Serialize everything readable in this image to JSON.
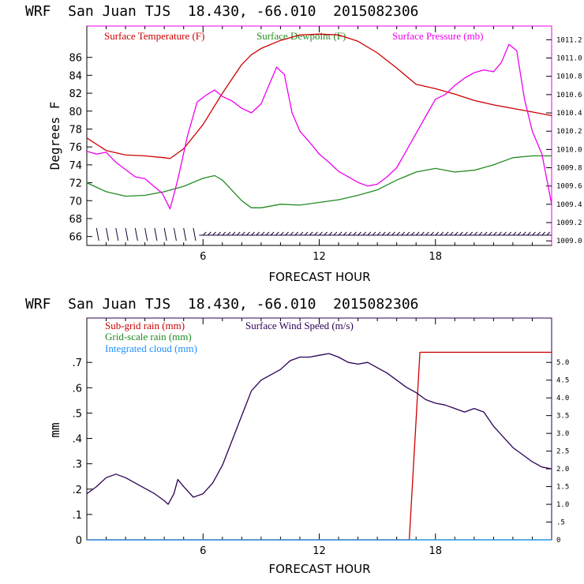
{
  "colors": {
    "temperature": "#cc0000",
    "dewpoint": "#228b22",
    "pressure": "#ee00ee",
    "wind_barb": "#1a0033",
    "subgrid_rain": "#cc0000",
    "gridscale_rain": "#228b22",
    "cloud": "#1e90ff",
    "wind_speed": "#2a0055",
    "axis": "#000000"
  },
  "chart_data": [
    {
      "type": "line",
      "title": "WRF  San Juan TJS  18.430, -66.010  2015082306",
      "xlabel": "FORECAST HOUR",
      "ylabel": "Degrees F",
      "y2label": "",
      "xlim": [
        0,
        24
      ],
      "ylim": [
        65,
        89.5
      ],
      "y2lim": [
        1008.95,
        1011.35
      ],
      "xticks": [
        6,
        12,
        18
      ],
      "yticks": [
        66,
        68,
        70,
        72,
        74,
        76,
        78,
        80,
        82,
        84,
        86
      ],
      "y2ticks": [
        "1009.0",
        "1009.2",
        "1009.4",
        "1009.6",
        "1009.8",
        "1010.0",
        "1010.2",
        "1010.4",
        "1010.6",
        "1010.8",
        "1011.0",
        "1011.2"
      ],
      "legend": [
        "Surface Temperature (F)",
        "Surface Dewpoint (F)",
        "Surface Pressure (mb)"
      ],
      "series": [
        {
          "name": "Surface Temperature (F)",
          "axis": "left",
          "x": [
            0,
            1,
            2,
            3,
            4,
            4.3,
            5,
            6,
            7,
            8,
            8.5,
            9,
            10,
            11,
            12,
            13,
            14,
            15,
            16,
            17,
            18,
            19,
            20,
            21,
            22,
            23,
            24
          ],
          "values": [
            77.0,
            75.6,
            75.1,
            75.0,
            74.8,
            74.7,
            75.8,
            78.5,
            82.0,
            85.2,
            86.3,
            87.0,
            87.9,
            88.5,
            88.6,
            88.5,
            87.8,
            86.5,
            84.8,
            83.0,
            82.5,
            81.9,
            81.2,
            80.7,
            80.3,
            79.9,
            79.5
          ]
        },
        {
          "name": "Surface Dewpoint (F)",
          "axis": "left",
          "x": [
            0,
            1,
            2,
            3,
            4,
            5,
            6,
            6.6,
            7,
            8,
            8.5,
            9,
            10,
            11,
            12,
            13,
            14,
            15,
            16,
            17,
            18,
            19,
            20,
            21,
            22,
            23,
            24
          ],
          "values": [
            72.0,
            71.0,
            70.5,
            70.6,
            71.0,
            71.6,
            72.5,
            72.8,
            72.3,
            70.0,
            69.2,
            69.2,
            69.6,
            69.5,
            69.8,
            70.1,
            70.6,
            71.2,
            72.3,
            73.2,
            73.6,
            73.2,
            73.4,
            74.0,
            74.8,
            75.0,
            75.0
          ]
        },
        {
          "name": "Surface Pressure (mb)",
          "axis": "right",
          "x": [
            0,
            0.5,
            1,
            1.5,
            2,
            2.5,
            3,
            3.5,
            3.9,
            4.3,
            4.7,
            5.2,
            5.7,
            6.2,
            6.6,
            7.0,
            7.5,
            8.0,
            8.5,
            9.0,
            9.4,
            9.8,
            10.2,
            10.6,
            11.0,
            11.5,
            12.0,
            12.5,
            13.0,
            13.5,
            14.0,
            14.5,
            15.0,
            15.5,
            16.0,
            16.4,
            16.8,
            17.2,
            17.6,
            18.0,
            18.5,
            19.0,
            19.5,
            20.0,
            20.5,
            21.0,
            21.4,
            21.8,
            22.2,
            22.6,
            23.0,
            23.5,
            24.0
          ],
          "values": [
            1009.98,
            1009.95,
            1009.97,
            1009.86,
            1009.78,
            1009.7,
            1009.68,
            1009.59,
            1009.52,
            1009.35,
            1009.67,
            1010.15,
            1010.52,
            1010.6,
            1010.65,
            1010.58,
            1010.53,
            1010.45,
            1010.4,
            1010.5,
            1010.7,
            1010.9,
            1010.82,
            1010.4,
            1010.2,
            1010.08,
            1009.95,
            1009.86,
            1009.76,
            1009.7,
            1009.64,
            1009.6,
            1009.62,
            1009.7,
            1009.8,
            1009.95,
            1010.1,
            1010.25,
            1010.4,
            1010.55,
            1010.6,
            1010.7,
            1010.78,
            1010.84,
            1010.87,
            1010.85,
            1010.95,
            1011.15,
            1011.08,
            1010.55,
            1010.2,
            1009.95,
            1009.4
          ]
        }
      ],
      "wind_barbs_present": true
    },
    {
      "type": "line",
      "title": "WRF  San Juan TJS  18.430, -66.010  2015082306",
      "xlabel": "FORECAST HOUR",
      "ylabel": "mm",
      "y2label": "",
      "xlim": [
        0,
        24
      ],
      "ylim": [
        0,
        0.875
      ],
      "y2lim": [
        0,
        6.25
      ],
      "xticks": [
        6,
        12,
        18
      ],
      "yticks": [
        "0",
        ".1",
        ".2",
        ".3",
        ".4",
        ".5",
        ".6",
        ".7"
      ],
      "y2ticks": [
        "0",
        ".5",
        "1.0",
        "1.5",
        "2.0",
        "2.5",
        "3.0",
        "3.5",
        "4.0",
        "4.5",
        "5.0"
      ],
      "legend": [
        "Sub-grid rain (mm)",
        "Grid-scale rain (mm)",
        "Integrated cloud (mm)",
        "Surface Wind Speed (m/s)"
      ],
      "series": [
        {
          "name": "Sub-grid rain (mm)",
          "axis": "left",
          "x": [
            0,
            16.6,
            16.65,
            17.2,
            24
          ],
          "values": [
            0,
            0,
            0,
            0.74,
            0.74
          ]
        },
        {
          "name": "Grid-scale rain (mm)",
          "axis": "left",
          "x": [
            0,
            24
          ],
          "values": [
            0,
            0
          ]
        },
        {
          "name": "Integrated cloud (mm)",
          "axis": "left",
          "x": [
            0,
            24
          ],
          "values": [
            0,
            0
          ]
        },
        {
          "name": "Surface Wind Speed (m/s)",
          "axis": "right",
          "x": [
            0,
            0.5,
            1,
            1.5,
            2,
            2.5,
            3,
            3.5,
            4,
            4.2,
            4.5,
            4.7,
            5,
            5.5,
            6,
            6.5,
            7,
            7.5,
            8,
            8.5,
            9,
            9.5,
            10,
            10.5,
            11,
            11.5,
            12,
            12.5,
            13,
            13.5,
            14,
            14.5,
            15,
            15.5,
            16,
            16.5,
            17,
            17.5,
            18,
            18.5,
            19,
            19.5,
            20,
            20.5,
            21,
            21.5,
            22,
            22.5,
            23,
            23.5,
            24
          ],
          "values": [
            1.3,
            1.5,
            1.75,
            1.85,
            1.75,
            1.6,
            1.45,
            1.3,
            1.1,
            1.0,
            1.3,
            1.7,
            1.5,
            1.2,
            1.3,
            1.6,
            2.1,
            2.8,
            3.5,
            4.2,
            4.5,
            4.65,
            4.8,
            5.05,
            5.15,
            5.15,
            5.2,
            5.25,
            5.15,
            5.0,
            4.95,
            5.0,
            4.85,
            4.7,
            4.5,
            4.3,
            4.15,
            3.95,
            3.85,
            3.8,
            3.7,
            3.6,
            3.7,
            3.6,
            3.2,
            2.9,
            2.6,
            2.4,
            2.2,
            2.05,
            2.0
          ]
        }
      ]
    }
  ]
}
